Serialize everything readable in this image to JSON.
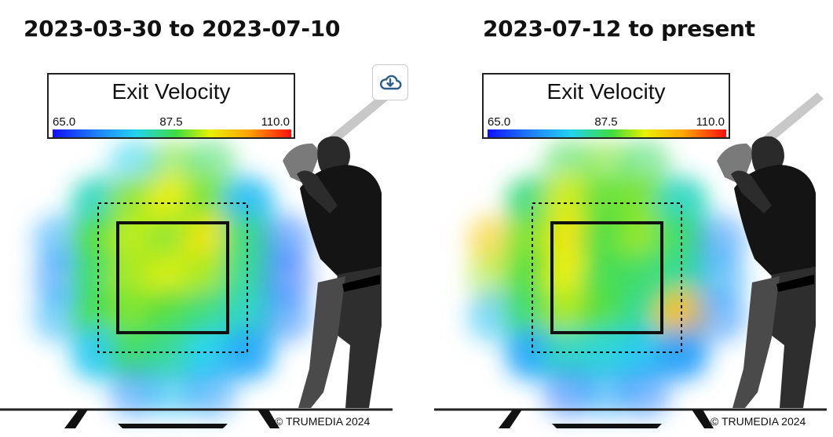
{
  "panels": [
    {
      "title": "2023-03-30 to 2023-07-10",
      "legend": {
        "title": "Exit Velocity",
        "min": "65.0",
        "mid": "87.5",
        "max": "110.0"
      },
      "copyright": "© TRUMEDIA 2024"
    },
    {
      "title": "2023-07-12 to present",
      "legend": {
        "title": "Exit Velocity",
        "min": "65.0",
        "mid": "87.5",
        "max": "110.0"
      },
      "copyright": "© TRUMEDIA 2024"
    }
  ],
  "download_button": {
    "icon": "cloud-download-icon"
  },
  "colors": {
    "scale": [
      "#1010ff",
      "#1f7fff",
      "#22d3ee",
      "#3fdc3f",
      "#e8f000",
      "#ffa500",
      "#ff1010"
    ],
    "accent": "#2b5c8a"
  },
  "chart_data": [
    {
      "type": "heatmap",
      "title": "2023-03-30 to 2023-07-10",
      "metric": "Exit Velocity",
      "range": [
        65.0,
        110.0
      ],
      "grid": {
        "rows": 7,
        "cols": 7,
        "values": [
          [
            0,
            0,
            80,
            90,
            86,
            0,
            0
          ],
          [
            0,
            82,
            91,
            95,
            90,
            78,
            0
          ],
          [
            76,
            88,
            93,
            91,
            96,
            85,
            72
          ],
          [
            74,
            86,
            92,
            94,
            92,
            84,
            71
          ],
          [
            77,
            87,
            90,
            88,
            85,
            82,
            73
          ],
          [
            0,
            79,
            86,
            84,
            80,
            76,
            0
          ],
          [
            0,
            0,
            74,
            78,
            75,
            0,
            0
          ]
        ]
      }
    },
    {
      "type": "heatmap",
      "title": "2023-07-12 to present",
      "metric": "Exit Velocity",
      "range": [
        65.0,
        110.0
      ],
      "grid": {
        "rows": 7,
        "cols": 7,
        "values": [
          [
            0,
            0,
            87,
            90,
            86,
            0,
            0
          ],
          [
            0,
            85,
            94,
            89,
            90,
            82,
            0
          ],
          [
            99,
            90,
            96,
            88,
            91,
            86,
            74
          ],
          [
            92,
            88,
            95,
            87,
            86,
            84,
            76
          ],
          [
            78,
            86,
            92,
            88,
            84,
            100,
            74
          ],
          [
            0,
            76,
            82,
            81,
            79,
            75,
            0
          ],
          [
            0,
            0,
            72,
            76,
            73,
            0,
            0
          ]
        ]
      }
    }
  ]
}
